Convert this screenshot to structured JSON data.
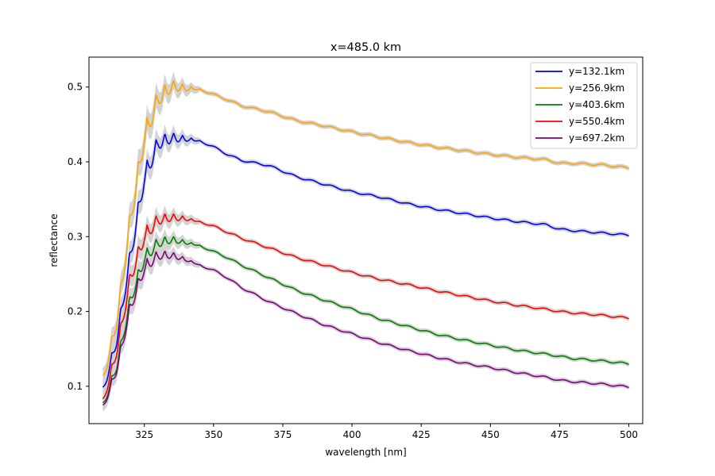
{
  "chart_data": {
    "type": "line",
    "title": "x=485.0 km",
    "xlabel": "wavelength [nm]",
    "ylabel": "reflectance",
    "xlim": [
      305,
      505
    ],
    "ylim": [
      0.05,
      0.54
    ],
    "xticks": [
      325,
      350,
      375,
      400,
      425,
      450,
      475,
      500
    ],
    "yticks": [
      0.1,
      0.2,
      0.3,
      0.4,
      0.5
    ],
    "xtick_labels": [
      "325",
      "350",
      "375",
      "400",
      "425",
      "450",
      "475",
      "500"
    ],
    "ytick_labels": [
      "0.1",
      "0.2",
      "0.3",
      "0.4",
      "0.5"
    ],
    "grid": false,
    "legend_position": "upper right",
    "uncertainty_band_color": "#d3d3d3",
    "series": [
      {
        "name": "y=132.1km",
        "color": "#0000ff",
        "x": [
          310,
          315,
          320,
          325,
          330,
          335,
          340,
          345,
          350,
          355,
          360,
          370,
          380,
          390,
          400,
          410,
          420,
          430,
          440,
          450,
          460,
          470,
          475,
          480,
          490,
          500
        ],
        "y": [
          0.095,
          0.165,
          0.28,
          0.385,
          0.43,
          0.435,
          0.432,
          0.428,
          0.42,
          0.41,
          0.402,
          0.395,
          0.38,
          0.37,
          0.36,
          0.353,
          0.344,
          0.337,
          0.331,
          0.325,
          0.32,
          0.316,
          0.31,
          0.308,
          0.305,
          0.302
        ]
      },
      {
        "name": "y=256.9km",
        "color": "#ffa500",
        "x": [
          310,
          315,
          320,
          325,
          330,
          335,
          340,
          345,
          350,
          355,
          360,
          370,
          380,
          390,
          400,
          410,
          420,
          430,
          440,
          450,
          460,
          470,
          475,
          480,
          490,
          500
        ],
        "y": [
          0.11,
          0.19,
          0.33,
          0.44,
          0.49,
          0.505,
          0.5,
          0.497,
          0.49,
          0.483,
          0.475,
          0.467,
          0.455,
          0.448,
          0.44,
          0.433,
          0.426,
          0.42,
          0.415,
          0.41,
          0.406,
          0.403,
          0.398,
          0.398,
          0.396,
          0.392
        ]
      },
      {
        "name": "y=403.6km",
        "color": "#008000",
        "x": [
          310,
          315,
          320,
          325,
          330,
          335,
          340,
          345,
          350,
          355,
          360,
          370,
          380,
          390,
          400,
          410,
          420,
          430,
          440,
          450,
          460,
          470,
          475,
          480,
          490,
          500
        ],
        "y": [
          0.075,
          0.13,
          0.22,
          0.275,
          0.295,
          0.298,
          0.293,
          0.288,
          0.28,
          0.272,
          0.262,
          0.245,
          0.228,
          0.215,
          0.203,
          0.19,
          0.18,
          0.17,
          0.162,
          0.155,
          0.148,
          0.143,
          0.14,
          0.137,
          0.134,
          0.13
        ]
      },
      {
        "name": "y=550.4km",
        "color": "#ff0000",
        "x": [
          310,
          315,
          320,
          325,
          330,
          335,
          340,
          345,
          350,
          355,
          360,
          370,
          380,
          390,
          400,
          410,
          420,
          430,
          440,
          450,
          460,
          470,
          475,
          480,
          490,
          500
        ],
        "y": [
          0.08,
          0.15,
          0.25,
          0.305,
          0.326,
          0.328,
          0.325,
          0.32,
          0.314,
          0.306,
          0.298,
          0.285,
          0.272,
          0.262,
          0.252,
          0.243,
          0.236,
          0.228,
          0.221,
          0.214,
          0.208,
          0.203,
          0.2,
          0.198,
          0.195,
          0.191
        ]
      },
      {
        "name": "y=697.2km",
        "color": "#800080",
        "x": [
          310,
          315,
          320,
          325,
          330,
          335,
          340,
          345,
          350,
          355,
          360,
          370,
          380,
          390,
          400,
          410,
          420,
          430,
          440,
          450,
          460,
          470,
          475,
          480,
          490,
          500
        ],
        "y": [
          0.072,
          0.125,
          0.21,
          0.262,
          0.278,
          0.277,
          0.27,
          0.262,
          0.255,
          0.245,
          0.232,
          0.213,
          0.197,
          0.182,
          0.17,
          0.158,
          0.148,
          0.139,
          0.131,
          0.125,
          0.118,
          0.112,
          0.108,
          0.106,
          0.103,
          0.099
        ]
      }
    ]
  }
}
